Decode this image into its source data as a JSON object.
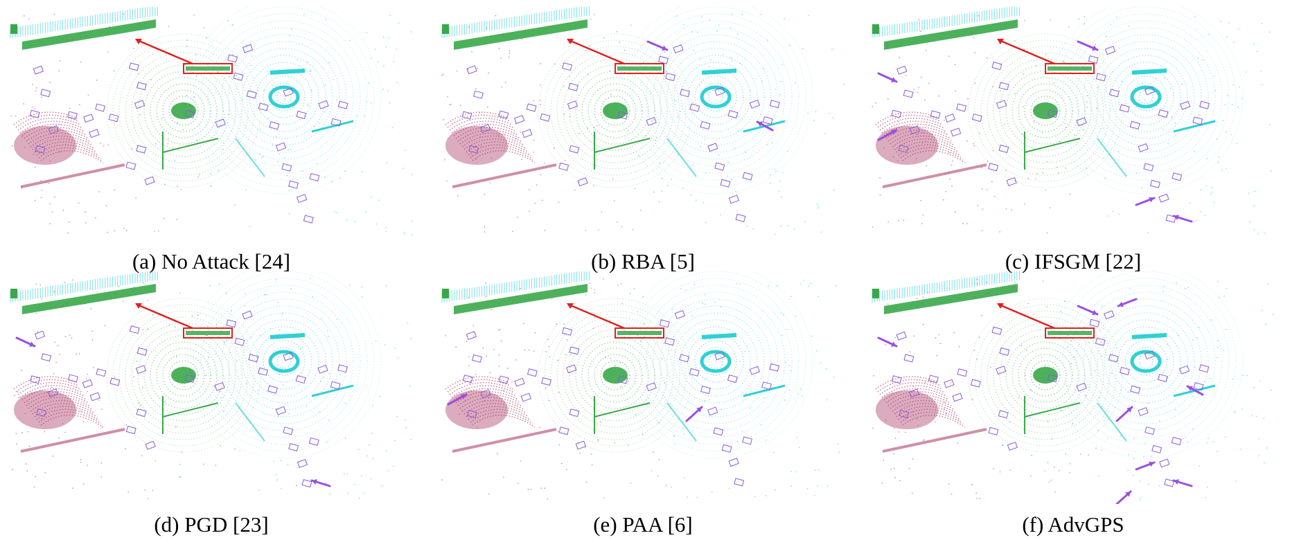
{
  "figure": {
    "panels": [
      {
        "label": "(a)",
        "name": "No Attack",
        "ref": "[24]",
        "caption": "(a) No Attack [24]",
        "arrows": []
      },
      {
        "label": "(b)",
        "name": "RBA",
        "ref": "[5]",
        "caption": "(b) RBA [5]",
        "arrows": [
          "top-center",
          "right-middle"
        ]
      },
      {
        "label": "(c)",
        "name": "IFSGM",
        "ref": "[22]",
        "caption": "(c) IFSGM [22]",
        "arrows": [
          "top-center",
          "left-upper",
          "left-middle",
          "bottom-right",
          "bottom-far-right"
        ]
      },
      {
        "label": "(d)",
        "name": "PGD",
        "ref": "[23]",
        "caption": "(d) PGD [23]",
        "arrows": [
          "left-upper",
          "bottom-far-right"
        ]
      },
      {
        "label": "(e)",
        "name": "PAA",
        "ref": "[6]",
        "caption": "(e) PAA [6]",
        "arrows": [
          "left-middle",
          "bottom-center"
        ]
      },
      {
        "label": "(f)",
        "name": "AdvGPS",
        "ref": "",
        "caption": "(f) AdvGPS",
        "arrows": [
          "top-center",
          "top-right",
          "left-upper",
          "right-middle",
          "bottom-center",
          "bottom-right",
          "bottom-far-right",
          "bottom-lower"
        ]
      }
    ]
  },
  "colors": {
    "green_points": "#3aa84a",
    "cyan_points": "#2fd0d6",
    "magenta_points": "#b0456f",
    "box_outline": "#8a5bd8",
    "highlight_box": "#e02020",
    "attack_arrow": "#9b4fe0"
  }
}
